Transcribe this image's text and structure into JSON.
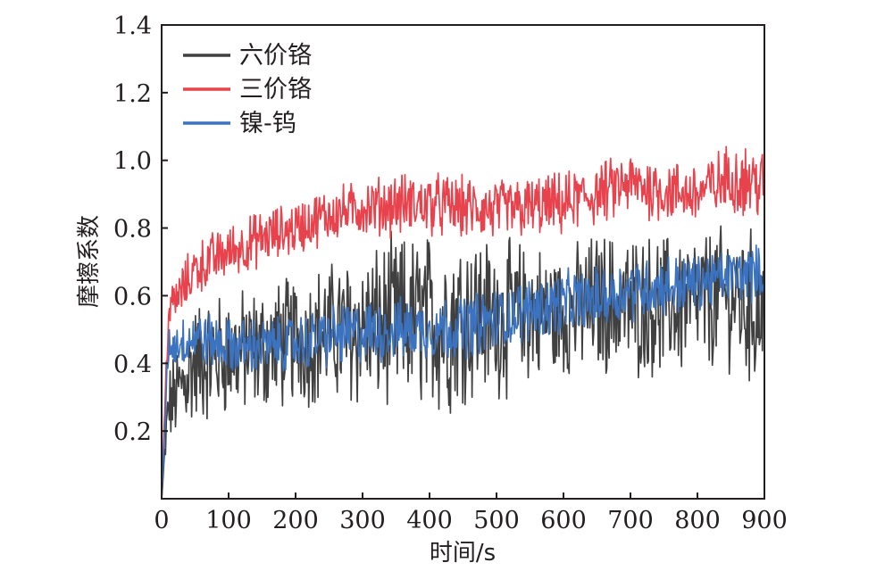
{
  "chart_data": {
    "type": "line",
    "xlabel": "时间/s",
    "ylabel": "摩擦系数",
    "xlim": [
      0,
      900
    ],
    "ylim": [
      0,
      1.4
    ],
    "x_ticks": [
      "0",
      "100",
      "200",
      "300",
      "400",
      "500",
      "600",
      "700",
      "800",
      "900"
    ],
    "y_ticks": [
      "0.2",
      "0.4",
      "0.6",
      "0.8",
      "1.0",
      "1.2",
      "1.4"
    ],
    "grid": false,
    "legend_position": "top-left",
    "series": [
      {
        "name": "六价铬",
        "color": "#404040",
        "x": [
          0,
          10,
          50,
          100,
          150,
          200,
          250,
          300,
          350,
          400,
          430,
          450,
          500,
          550,
          600,
          650,
          700,
          750,
          800,
          850,
          880,
          900
        ],
        "y": [
          0.0,
          0.27,
          0.4,
          0.43,
          0.44,
          0.47,
          0.49,
          0.5,
          0.52,
          0.53,
          0.52,
          0.55,
          0.53,
          0.55,
          0.54,
          0.58,
          0.57,
          0.57,
          0.58,
          0.6,
          0.56,
          0.58
        ],
        "spread": [
          0.0,
          0.1,
          0.16,
          0.16,
          0.16,
          0.17,
          0.18,
          0.2,
          0.22,
          0.22,
          0.25,
          0.22,
          0.2,
          0.18,
          0.16,
          0.18,
          0.18,
          0.18,
          0.18,
          0.18,
          0.2,
          0.18
        ]
      },
      {
        "name": "三价铬",
        "color": "#e8424c",
        "x": [
          0,
          10,
          50,
          100,
          150,
          200,
          250,
          300,
          350,
          400,
          450,
          500,
          550,
          600,
          650,
          700,
          750,
          800,
          850,
          900
        ],
        "y": [
          0.0,
          0.55,
          0.68,
          0.73,
          0.77,
          0.8,
          0.84,
          0.86,
          0.87,
          0.87,
          0.86,
          0.85,
          0.86,
          0.87,
          0.9,
          0.93,
          0.91,
          0.9,
          0.95,
          0.93
        ],
        "spread": [
          0.0,
          0.06,
          0.07,
          0.07,
          0.07,
          0.07,
          0.07,
          0.07,
          0.08,
          0.08,
          0.08,
          0.08,
          0.08,
          0.08,
          0.08,
          0.08,
          0.08,
          0.08,
          0.09,
          0.09
        ]
      },
      {
        "name": "镍-钨",
        "color": "#3b73c0",
        "x": [
          0,
          10,
          50,
          100,
          150,
          200,
          250,
          300,
          350,
          400,
          450,
          500,
          550,
          600,
          650,
          700,
          750,
          800,
          850,
          900
        ],
        "y": [
          0.0,
          0.45,
          0.48,
          0.45,
          0.45,
          0.46,
          0.48,
          0.49,
          0.5,
          0.5,
          0.51,
          0.53,
          0.56,
          0.58,
          0.59,
          0.62,
          0.63,
          0.64,
          0.66,
          0.67
        ],
        "spread": [
          0.0,
          0.06,
          0.07,
          0.07,
          0.07,
          0.07,
          0.08,
          0.08,
          0.08,
          0.08,
          0.08,
          0.08,
          0.08,
          0.08,
          0.08,
          0.08,
          0.08,
          0.07,
          0.07,
          0.07
        ]
      }
    ]
  }
}
